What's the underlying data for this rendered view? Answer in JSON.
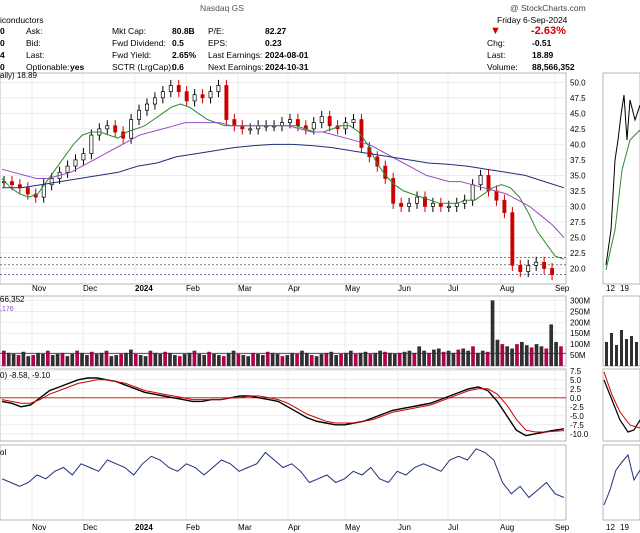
{
  "header": {
    "exchange": "Nasdaq GS",
    "company_partial": "iconductors",
    "date": "Friday 6-Sep-2024",
    "credit": "@ StockCharts.com",
    "left_partial": [
      "0",
      "0",
      "4",
      "0"
    ],
    "col1": {
      "labels": [
        "Ask:",
        "Bid:",
        "Last:",
        "Optionable:"
      ],
      "values": [
        "",
        "",
        "",
        "yes"
      ]
    },
    "col2": {
      "labels": [
        "Mkt Cap:",
        "Fwd Dividend:",
        "Fwd Yield:",
        "SCTR (LrgCap):"
      ],
      "values": [
        "80.8B",
        "0.5",
        "2.65%",
        "0.6"
      ]
    },
    "col3": {
      "labels": [
        "P/E:",
        "EPS:",
        "Last Earnings:",
        "Next Earnings:"
      ],
      "values": [
        "82.27",
        "0.23",
        "2024-08-01",
        "2024-10-31"
      ]
    },
    "col4": {
      "change_pct": "-2.63%",
      "labels": [
        "Chg:",
        "Last:",
        "Volume:"
      ],
      "values": [
        "-0.51",
        "18.89",
        "88,566,352"
      ]
    },
    "daily_label": "aily) 18.89"
  },
  "colors": {
    "up": "#000000",
    "down": "#cc0000",
    "ma_short": "#2e8b2e",
    "ma_mid": "#9b4dc4",
    "ma_long": "#1f2f7a",
    "macd": "#000000",
    "signal": "#cc0000",
    "volume_up": "#303030",
    "volume_down": "#b5004c",
    "grid": "#e0e0e0",
    "sma_line": "#1f2f7a"
  },
  "panels": {
    "volume_label": "66,352",
    "volume_sub": ",176",
    "macd_label": "0) -8.58, -9.10",
    "bottom_label": "ol"
  },
  "chart_data": [
    {
      "type": "candlestick",
      "title": "",
      "last": 18.89,
      "ylim": [
        17.5,
        51.5
      ],
      "y_ticks": [
        "50.0",
        "47.5",
        "45.0",
        "42.5",
        "40.0",
        "37.5",
        "35.0",
        "32.5",
        "30.0",
        "27.5",
        "25.0",
        "22.5",
        "20.0"
      ],
      "x_tick_labels": [
        "Nov",
        "Dec",
        "2024",
        "Feb",
        "Mar",
        "Apr",
        "May",
        "Jun",
        "Jul",
        "Aug",
        "Sep"
      ],
      "close_series": [
        34,
        33.5,
        33,
        32,
        31.5,
        33.5,
        34.5,
        35.5,
        36.5,
        37.5,
        38.5,
        41.5,
        42.5,
        43,
        42,
        41,
        44,
        45.5,
        46.5,
        47.5,
        48.5,
        49.5,
        48.5,
        47,
        48,
        47.5,
        48.5,
        49.5,
        44,
        43,
        42.5,
        42.5,
        43,
        43,
        43,
        43.5,
        44,
        43,
        42.5,
        43.5,
        44.5,
        43,
        42.5,
        43.5,
        44,
        39.5,
        38,
        36.5,
        34.5,
        30.5,
        30,
        30.5,
        31.5,
        30,
        30.5,
        30,
        30,
        30.5,
        31,
        33.5,
        35,
        32.5,
        31,
        29,
        20.5,
        19.5,
        20.5,
        21,
        20,
        19
      ],
      "series": [
        {
          "name": "",
          "values": [
            34.5,
            33,
            32,
            31.5,
            32,
            34,
            36,
            38,
            40,
            41.5,
            42,
            42,
            41.5,
            41,
            42,
            42.5,
            43,
            44,
            45,
            46,
            46.5,
            46,
            45,
            44,
            43.5,
            43,
            43,
            43,
            43,
            43,
            43,
            43,
            43,
            43,
            42.5,
            42,
            42,
            42.5,
            43,
            43,
            42,
            40,
            37,
            35,
            33.5,
            32.5,
            32,
            31.5,
            31,
            30.5,
            30.5,
            30.5,
            31,
            31,
            32,
            33,
            33.5,
            33,
            31.5,
            29,
            26,
            24,
            22,
            21.5
          ]
        },
        {
          "name": "",
          "values": [
            36,
            35.5,
            35,
            34.5,
            34.5,
            35,
            35.5,
            36.5,
            37.5,
            38.5,
            39.5,
            40.5,
            41.5,
            42,
            42.5,
            43,
            43.5,
            43.5,
            43.5,
            43.5,
            43,
            43,
            43,
            43,
            43,
            43,
            42.5,
            42,
            42,
            41.5,
            41,
            40.5,
            40,
            39,
            38,
            37,
            36,
            35,
            34.5,
            34,
            34,
            33.5,
            33,
            32.5,
            32,
            31,
            30,
            28.5,
            27,
            25
          ]
        },
        {
          "name": "",
          "values": [
            33,
            33,
            33.5,
            34,
            34.5,
            35,
            35.5,
            36.5,
            37,
            38,
            38.5,
            39,
            39.5,
            39.8,
            40,
            40,
            39.8,
            39.5,
            39,
            38.5,
            38,
            37.5,
            37,
            36.8,
            36.5,
            36,
            35.5,
            35,
            34,
            33
          ]
        }
      ]
    },
    {
      "type": "bar",
      "title": "",
      "y_ticks": [
        "300M",
        "250M",
        "200M",
        "150M",
        "100M",
        "50M"
      ],
      "ylim": [
        0,
        320
      ],
      "values": [
        70,
        60,
        55,
        50,
        65,
        45,
        50,
        60,
        55,
        70,
        50,
        55,
        60,
        45,
        55,
        70,
        60,
        50,
        65,
        55,
        60,
        70,
        45,
        50,
        55,
        60,
        75,
        55,
        50,
        45,
        70,
        60,
        55,
        65,
        60,
        50,
        45,
        55,
        60,
        70,
        55,
        50,
        65,
        55,
        50,
        45,
        60,
        70,
        55,
        50,
        45,
        60,
        55,
        50,
        65,
        60,
        55,
        45,
        50,
        60,
        55,
        70,
        60,
        50,
        45,
        55,
        60,
        65,
        50,
        55,
        60,
        70,
        55,
        60,
        65,
        55,
        60,
        70,
        65,
        60,
        55,
        60,
        65,
        70,
        60,
        90,
        70,
        60,
        75,
        80,
        65,
        70,
        60,
        75,
        80,
        70,
        90,
        60,
        70,
        65,
        300,
        120,
        100,
        90,
        80,
        100,
        110,
        95,
        85,
        100,
        90,
        80,
        190,
        110,
        90
      ]
    },
    {
      "type": "line",
      "title": "",
      "y_ticks": [
        "7.5",
        "5.0",
        "2.5",
        "0.0",
        "-2.5",
        "-5.0",
        "-7.5",
        "-10.0"
      ],
      "ylim": [
        -12,
        8
      ],
      "series": [
        {
          "name": "",
          "values": [
            -1,
            -1.5,
            -2.5,
            -2,
            0,
            2,
            3,
            4,
            5,
            5.5,
            5.5,
            5,
            4.5,
            3.5,
            2.5,
            1.5,
            1,
            0.5,
            0,
            -0.5,
            -1,
            -1,
            -0.5,
            -0.5,
            0,
            0.5,
            0.5,
            0,
            -0.5,
            -1,
            -2.5,
            -4,
            -5.5,
            -6.5,
            -7,
            -7.5,
            -7.5,
            -7,
            -6.5,
            -5.5,
            -4.5,
            -3.5,
            -3,
            -2.5,
            -2,
            -1.5,
            -0.5,
            0.5,
            1.5,
            2.5,
            3,
            2,
            -1,
            -5,
            -9,
            -10.5,
            -10,
            -9.5,
            -9,
            -8.6
          ]
        },
        {
          "name": "",
          "values": [
            -0.5,
            -1,
            -1.5,
            -1.5,
            -0.5,
            1,
            2,
            3,
            4,
            4.5,
            5,
            5,
            4.5,
            4,
            3,
            2,
            1.5,
            1,
            0.5,
            0,
            -0.5,
            -0.5,
            -0.5,
            -0.5,
            0,
            0,
            0.5,
            0.5,
            0,
            -0.5,
            -1.5,
            -3,
            -4.5,
            -5.5,
            -6.5,
            -7,
            -7,
            -7,
            -6.5,
            -6,
            -5,
            -4,
            -3.5,
            -3,
            -2.5,
            -2,
            -1,
            0,
            1,
            2,
            2.5,
            2.5,
            1,
            -2,
            -6,
            -9,
            -9.5,
            -9.5,
            -9.3,
            -9.1
          ]
        }
      ]
    },
    {
      "type": "line",
      "title": "",
      "series": [
        {
          "name": "",
          "values": [
            0.55,
            0.5,
            0.45,
            0.5,
            0.6,
            0.55,
            0.65,
            0.7,
            0.6,
            0.75,
            0.7,
            0.65,
            0.8,
            0.75,
            0.7,
            0.6,
            0.75,
            0.85,
            0.8,
            0.7,
            0.65,
            0.75,
            0.7,
            0.6,
            0.7,
            0.8,
            0.75,
            0.65,
            0.7,
            0.75,
            0.9,
            0.8,
            0.7,
            0.75,
            0.65,
            0.5,
            0.55,
            0.6,
            0.5,
            0.55,
            0.65,
            0.6,
            0.7,
            0.55,
            0.5,
            0.65,
            0.6,
            0.7,
            0.75,
            0.7,
            0.65,
            0.8,
            0.85,
            0.8,
            0.95,
            0.9,
            0.8,
            0.5,
            0.35,
            0.45,
            0.3,
            0.4,
            0.5,
            0.35,
            0.3
          ]
        }
      ]
    }
  ]
}
